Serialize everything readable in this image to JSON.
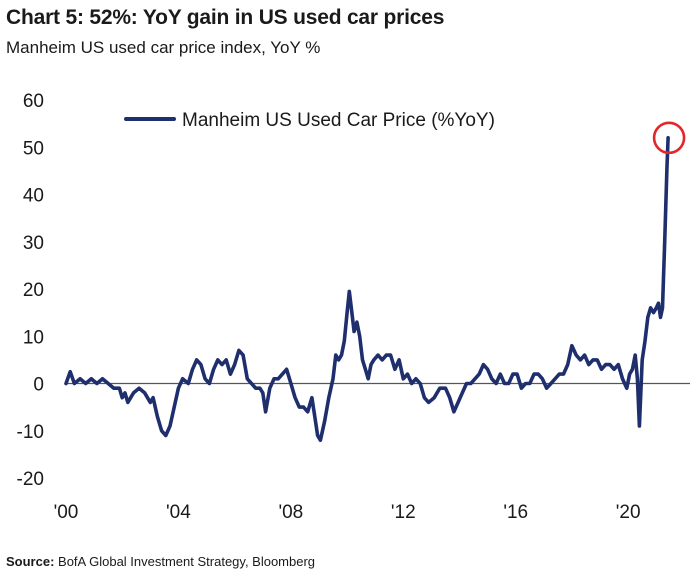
{
  "header": {
    "title": "Chart 5: 52%: YoY gain in US used car prices",
    "subtitle": "Manheim US used car price index, YoY %"
  },
  "footer": {
    "source_label": "Source:",
    "source_text": "BofA Global Investment Strategy, Bloomberg"
  },
  "colors": {
    "series": "#1f2f6e",
    "highlight": "#e3262b",
    "axis": "#555555"
  },
  "chart_data": {
    "type": "line",
    "title": "Chart 5: 52%: YoY gain in US used car prices",
    "subtitle": "Manheim US used car price index, YoY %",
    "xlabel": "",
    "ylabel": "",
    "xlim": [
      2000,
      2022.2
    ],
    "ylim": [
      -20,
      60
    ],
    "yticks": [
      60,
      50,
      40,
      30,
      20,
      10,
      0,
      -10,
      -20
    ],
    "xticks": [
      {
        "value": 2000,
        "label": "'00"
      },
      {
        "value": 2004,
        "label": "'04"
      },
      {
        "value": 2008,
        "label": "'08"
      },
      {
        "value": 2012,
        "label": "'12"
      },
      {
        "value": 2016,
        "label": "'16"
      },
      {
        "value": 2020,
        "label": "'20"
      }
    ],
    "grid": false,
    "legend": {
      "position": "top",
      "entries": [
        "Manheim US Used Car Price (%YoY)"
      ]
    },
    "annotation": {
      "type": "circle",
      "x": 2021.42,
      "y": 52
    },
    "series": [
      {
        "name": "Manheim US Used Car Price (%YoY)",
        "points": [
          [
            2000.0,
            0
          ],
          [
            2000.15,
            2.5
          ],
          [
            2000.3,
            0
          ],
          [
            2000.5,
            1
          ],
          [
            2000.7,
            0
          ],
          [
            2000.9,
            1
          ],
          [
            2001.1,
            0
          ],
          [
            2001.3,
            1
          ],
          [
            2001.5,
            0
          ],
          [
            2001.7,
            -1
          ],
          [
            2001.9,
            -1
          ],
          [
            2002.0,
            -3
          ],
          [
            2002.1,
            -2
          ],
          [
            2002.2,
            -4
          ],
          [
            2002.4,
            -2
          ],
          [
            2002.6,
            -1
          ],
          [
            2002.8,
            -2
          ],
          [
            2003.0,
            -4
          ],
          [
            2003.1,
            -3
          ],
          [
            2003.25,
            -7
          ],
          [
            2003.4,
            -10
          ],
          [
            2003.55,
            -11
          ],
          [
            2003.7,
            -9
          ],
          [
            2003.85,
            -5
          ],
          [
            2004.0,
            -1
          ],
          [
            2004.15,
            1
          ],
          [
            2004.35,
            0
          ],
          [
            2004.5,
            3
          ],
          [
            2004.65,
            5
          ],
          [
            2004.8,
            4
          ],
          [
            2004.95,
            1
          ],
          [
            2005.1,
            0
          ],
          [
            2005.25,
            3
          ],
          [
            2005.4,
            5
          ],
          [
            2005.55,
            4
          ],
          [
            2005.7,
            5
          ],
          [
            2005.85,
            2
          ],
          [
            2006.0,
            4
          ],
          [
            2006.15,
            7
          ],
          [
            2006.3,
            6
          ],
          [
            2006.45,
            1
          ],
          [
            2006.6,
            0
          ],
          [
            2006.75,
            -1
          ],
          [
            2006.9,
            -1
          ],
          [
            2007.0,
            -2
          ],
          [
            2007.1,
            -6
          ],
          [
            2007.25,
            -1
          ],
          [
            2007.4,
            1
          ],
          [
            2007.55,
            1
          ],
          [
            2007.7,
            2
          ],
          [
            2007.85,
            3
          ],
          [
            2008.0,
            0
          ],
          [
            2008.15,
            -3
          ],
          [
            2008.3,
            -5
          ],
          [
            2008.45,
            -5
          ],
          [
            2008.6,
            -6
          ],
          [
            2008.75,
            -3
          ],
          [
            2008.85,
            -7
          ],
          [
            2008.95,
            -11
          ],
          [
            2009.05,
            -12
          ],
          [
            2009.2,
            -8
          ],
          [
            2009.35,
            -3
          ],
          [
            2009.5,
            1
          ],
          [
            2009.6,
            6
          ],
          [
            2009.7,
            5
          ],
          [
            2009.8,
            6
          ],
          [
            2009.9,
            9
          ],
          [
            2010.0,
            15
          ],
          [
            2010.08,
            19.5
          ],
          [
            2010.15,
            16
          ],
          [
            2010.25,
            11
          ],
          [
            2010.35,
            13
          ],
          [
            2010.45,
            10
          ],
          [
            2010.55,
            5
          ],
          [
            2010.65,
            3
          ],
          [
            2010.75,
            1
          ],
          [
            2010.85,
            4
          ],
          [
            2010.95,
            5
          ],
          [
            2011.1,
            6
          ],
          [
            2011.25,
            5
          ],
          [
            2011.4,
            6
          ],
          [
            2011.55,
            6
          ],
          [
            2011.7,
            3
          ],
          [
            2011.85,
            5
          ],
          [
            2012.0,
            1
          ],
          [
            2012.15,
            2
          ],
          [
            2012.3,
            0
          ],
          [
            2012.45,
            1
          ],
          [
            2012.6,
            0
          ],
          [
            2012.75,
            -3
          ],
          [
            2012.9,
            -4
          ],
          [
            2013.1,
            -3
          ],
          [
            2013.3,
            -1
          ],
          [
            2013.5,
            -1
          ],
          [
            2013.65,
            -3
          ],
          [
            2013.8,
            -6
          ],
          [
            2013.95,
            -4
          ],
          [
            2014.1,
            -2
          ],
          [
            2014.25,
            0
          ],
          [
            2014.4,
            0
          ],
          [
            2014.55,
            1
          ],
          [
            2014.7,
            2
          ],
          [
            2014.85,
            4
          ],
          [
            2015.0,
            3
          ],
          [
            2015.15,
            1
          ],
          [
            2015.3,
            0
          ],
          [
            2015.45,
            2
          ],
          [
            2015.6,
            0
          ],
          [
            2015.75,
            0
          ],
          [
            2015.9,
            2
          ],
          [
            2016.05,
            2
          ],
          [
            2016.2,
            -1
          ],
          [
            2016.35,
            0
          ],
          [
            2016.5,
            0
          ],
          [
            2016.65,
            2
          ],
          [
            2016.8,
            2
          ],
          [
            2016.95,
            1
          ],
          [
            2017.1,
            -1
          ],
          [
            2017.25,
            0
          ],
          [
            2017.4,
            1
          ],
          [
            2017.55,
            2
          ],
          [
            2017.7,
            2
          ],
          [
            2017.85,
            4
          ],
          [
            2018.0,
            8
          ],
          [
            2018.15,
            6
          ],
          [
            2018.3,
            5
          ],
          [
            2018.45,
            6
          ],
          [
            2018.6,
            4
          ],
          [
            2018.75,
            5
          ],
          [
            2018.9,
            5
          ],
          [
            2019.05,
            3
          ],
          [
            2019.2,
            4
          ],
          [
            2019.35,
            4
          ],
          [
            2019.5,
            3
          ],
          [
            2019.65,
            4
          ],
          [
            2019.8,
            1
          ],
          [
            2019.95,
            -1
          ],
          [
            2020.05,
            2
          ],
          [
            2020.15,
            3
          ],
          [
            2020.25,
            6
          ],
          [
            2020.33,
            1
          ],
          [
            2020.4,
            -9
          ],
          [
            2020.5,
            5
          ],
          [
            2020.6,
            9
          ],
          [
            2020.7,
            14
          ],
          [
            2020.8,
            16
          ],
          [
            2020.9,
            15
          ],
          [
            2021.0,
            16
          ],
          [
            2021.08,
            17
          ],
          [
            2021.15,
            14
          ],
          [
            2021.22,
            16
          ],
          [
            2021.3,
            30
          ],
          [
            2021.38,
            46
          ],
          [
            2021.42,
            52
          ]
        ]
      }
    ]
  }
}
